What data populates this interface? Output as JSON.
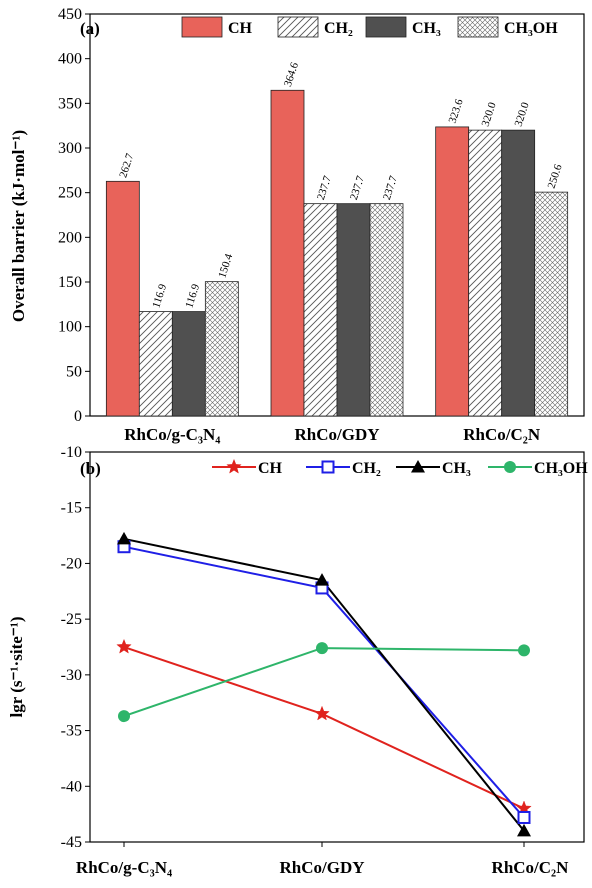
{
  "colors": {
    "CH_bar": "#E8635A",
    "CH3_bar": "#505050",
    "CH_line": "#E0231E",
    "CH2_line": "#1F1FE6",
    "CH3_line": "#000000",
    "CH3OH_line": "#2EB56A"
  },
  "chart_data": [
    {
      "panel": "(a)",
      "type": "bar",
      "ylabel": "Overall barrier (kJ·mol⁻¹)",
      "ylim": [
        0,
        450
      ],
      "yticks": [
        "0",
        "50",
        "100",
        "150",
        "200",
        "250",
        "300",
        "350",
        "400",
        "450"
      ],
      "categories": [
        "RhCo/g-C₃N₄",
        "RhCo/GDY",
        "RhCo/C₂N"
      ],
      "legend_position": "top-right",
      "series": [
        {
          "name": "CH",
          "fill": "solid-red",
          "values": [
            262.7,
            364.6,
            323.6
          ],
          "labels": [
            "262.7",
            "364.6",
            "323.6"
          ]
        },
        {
          "name": "CH₂",
          "fill": "diagonal-hatch",
          "values": [
            116.9,
            237.7,
            320.0
          ],
          "labels": [
            "116.9",
            "237.7",
            "320.0"
          ]
        },
        {
          "name": "CH₃",
          "fill": "solid-dark",
          "values": [
            116.9,
            237.7,
            320.0
          ],
          "labels": [
            "116.9",
            "237.7",
            "320.0"
          ]
        },
        {
          "name": "CH₃OH",
          "fill": "cross-hatch",
          "values": [
            150.4,
            237.7,
            250.6
          ],
          "labels": [
            "150.4",
            "237.7",
            "250.6"
          ]
        }
      ]
    },
    {
      "panel": "(b)",
      "type": "line",
      "ylabel": "lgr (s⁻¹·site⁻¹)",
      "ylim": [
        -45,
        -10
      ],
      "yticks": [
        "-10",
        "-15",
        "-20",
        "-25",
        "-30",
        "-35",
        "-40",
        "-45"
      ],
      "categories": [
        "RhCo/g-C₃N₄",
        "RhCo/GDY",
        "RhCo/C₂N"
      ],
      "legend_position": "top",
      "series": [
        {
          "name": "CH",
          "marker": "star",
          "values": [
            -27.5,
            -33.5,
            -42.0
          ]
        },
        {
          "name": "CH₂",
          "marker": "open-square",
          "values": [
            -18.5,
            -22.2,
            -42.8
          ]
        },
        {
          "name": "CH₃",
          "marker": "triangle",
          "values": [
            -17.8,
            -21.5,
            -44.0
          ]
        },
        {
          "name": "CH₃OH",
          "marker": "circle",
          "values": [
            -33.7,
            -27.6,
            -27.8
          ]
        }
      ]
    }
  ]
}
